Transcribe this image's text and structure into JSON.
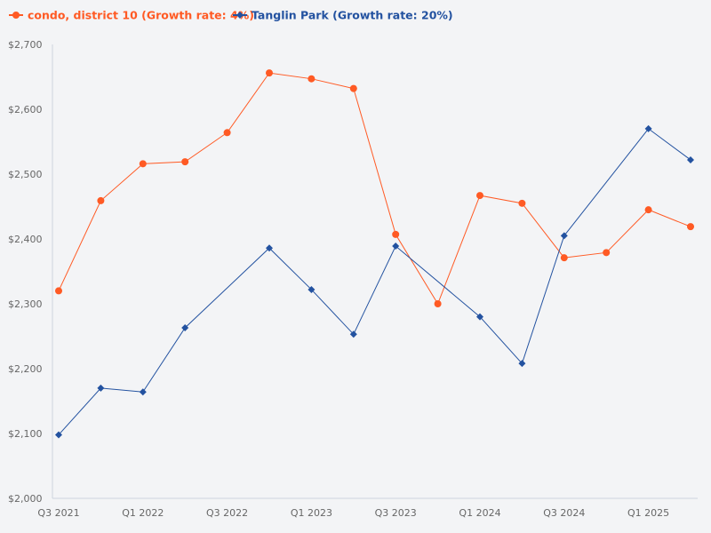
{
  "chart_data": {
    "type": "line",
    "title": "",
    "xlabel": "",
    "ylabel": "",
    "ylim": [
      2000,
      2700
    ],
    "yticks": [
      "$2,000",
      "$2,100",
      "$2,200",
      "$2,300",
      "$2,400",
      "$2,500",
      "$2,600",
      "$2,700"
    ],
    "ytick_values": [
      2000,
      2100,
      2200,
      2300,
      2400,
      2500,
      2600,
      2700
    ],
    "x": [
      "Q3 2021",
      "Q4 2021",
      "Q1 2022",
      "Q2 2022",
      "Q3 2022",
      "Q4 2022",
      "Q1 2023",
      "Q2 2023",
      "Q3 2023",
      "Q4 2023",
      "Q1 2024",
      "Q2 2024",
      "Q3 2024",
      "Q4 2024",
      "Q1 2025",
      "Q2 2025"
    ],
    "xtick_labels": [
      "Q3 2021",
      "Q1 2022",
      "Q3 2022",
      "Q1 2023",
      "Q3 2023",
      "Q1 2024",
      "Q3 2024",
      "Q1 2025"
    ],
    "grid": false,
    "legend_position": "top-left",
    "series": [
      {
        "name": "condo, district 10 (Growth rate: 4%)",
        "color": "#ff5a24",
        "marker": "circle",
        "values": [
          2320,
          2459,
          2516,
          2519,
          2564,
          2656,
          2647,
          2632,
          2407,
          2300,
          2467,
          2455,
          2371,
          2379,
          2445,
          2419
        ]
      },
      {
        "name": "Tanglin Park (Growth rate: 20%)",
        "color": "#2352a0",
        "marker": "diamond",
        "values": [
          2098,
          2170,
          2164,
          2263,
          null,
          2386,
          2322,
          2253,
          2389,
          null,
          2280,
          2208,
          2405,
          null,
          2570,
          2522
        ]
      }
    ]
  }
}
